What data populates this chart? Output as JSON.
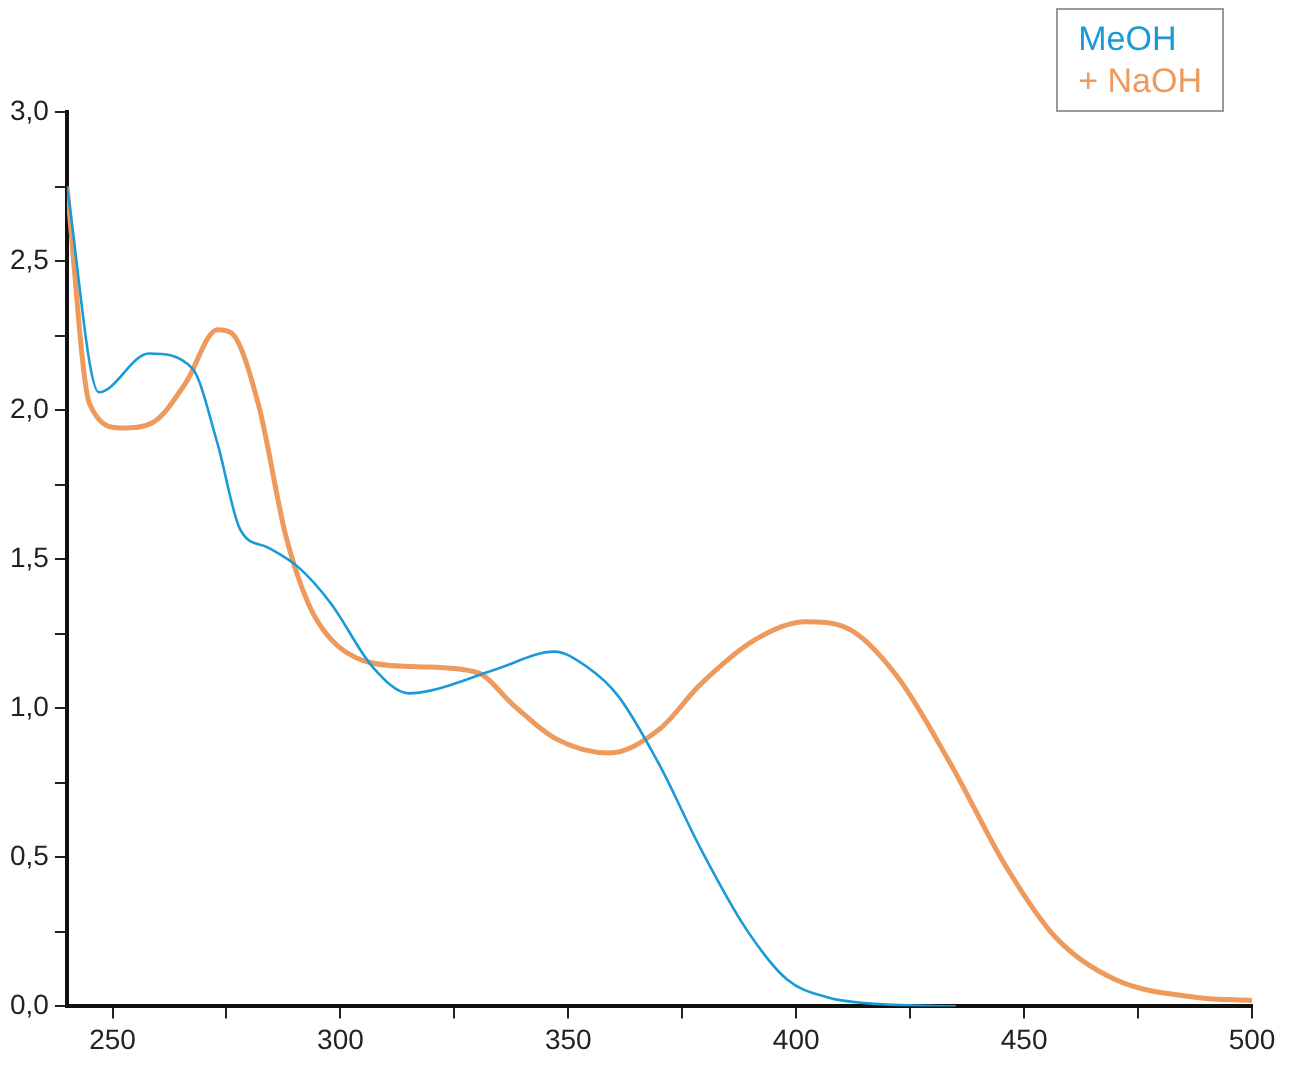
{
  "chart_data": {
    "type": "line",
    "xlim": [
      240,
      500
    ],
    "ylim": [
      0,
      3
    ],
    "xticks": [
      250,
      {
        "value": 275,
        "label": null
      },
      300,
      {
        "value": 325,
        "label": null
      },
      350,
      {
        "value": 375,
        "label": null
      },
      400,
      {
        "value": 425,
        "label": null
      },
      450,
      {
        "value": 475,
        "label": null
      },
      500
    ],
    "yticks": [
      {
        "value": 0,
        "label": "0,0"
      },
      {
        "value": 0.25,
        "label": null
      },
      {
        "value": 0.5,
        "label": "0,5"
      },
      {
        "value": 0.75,
        "label": null
      },
      {
        "value": 1,
        "label": "1,0"
      },
      {
        "value": 1.25,
        "label": null
      },
      {
        "value": 1.5,
        "label": "1,5"
      },
      {
        "value": 1.75,
        "label": null
      },
      {
        "value": 2,
        "label": "2,0"
      },
      {
        "value": 2.25,
        "label": null
      },
      {
        "value": 2.5,
        "label": "2,5"
      },
      {
        "value": 2.75,
        "label": null
      },
      {
        "value": 3,
        "label": "3,0"
      }
    ],
    "grid": false,
    "legend": "top right",
    "marker": "none",
    "line_style": "solid",
    "series": [
      {
        "name": "MeOH",
        "color": "#1a9ad6",
        "x": [
          240,
          247,
          258,
          267.5,
          273,
          278,
          284,
          291,
          298,
          307,
          315,
          320,
          334,
          347,
          354,
          361,
          370,
          379,
          389,
          398,
          407,
          416,
          435
        ],
        "values": [
          2.75,
          2.06,
          2.19,
          2.14,
          1.89,
          1.6,
          1.54,
          1.47,
          1.35,
          1.14,
          1.05,
          1.06,
          1.13,
          1.19,
          1.14,
          1.04,
          0.81,
          0.53,
          0.26,
          0.09,
          0.03,
          0.01,
          0
        ]
      },
      {
        "name": "+ NaOH",
        "color": "#ee9a5c",
        "x": [
          240,
          245,
          252,
          259,
          266,
          273,
          276,
          282,
          288,
          293,
          298,
          305,
          316,
          330,
          338,
          347,
          359,
          370,
          379,
          391,
          402,
          411,
          422,
          434,
          446,
          457,
          470,
          488,
          500
        ],
        "values": [
          2.75,
          2.02,
          1.94,
          1.96,
          2.09,
          2.27,
          2.26,
          2.02,
          1.58,
          1.35,
          1.23,
          1.16,
          1.14,
          1.12,
          1.01,
          0.9,
          0.85,
          0.93,
          1.08,
          1.23,
          1.29,
          1.27,
          1.11,
          0.81,
          0.47,
          0.23,
          0.09,
          0.03,
          0.02
        ]
      }
    ]
  }
}
